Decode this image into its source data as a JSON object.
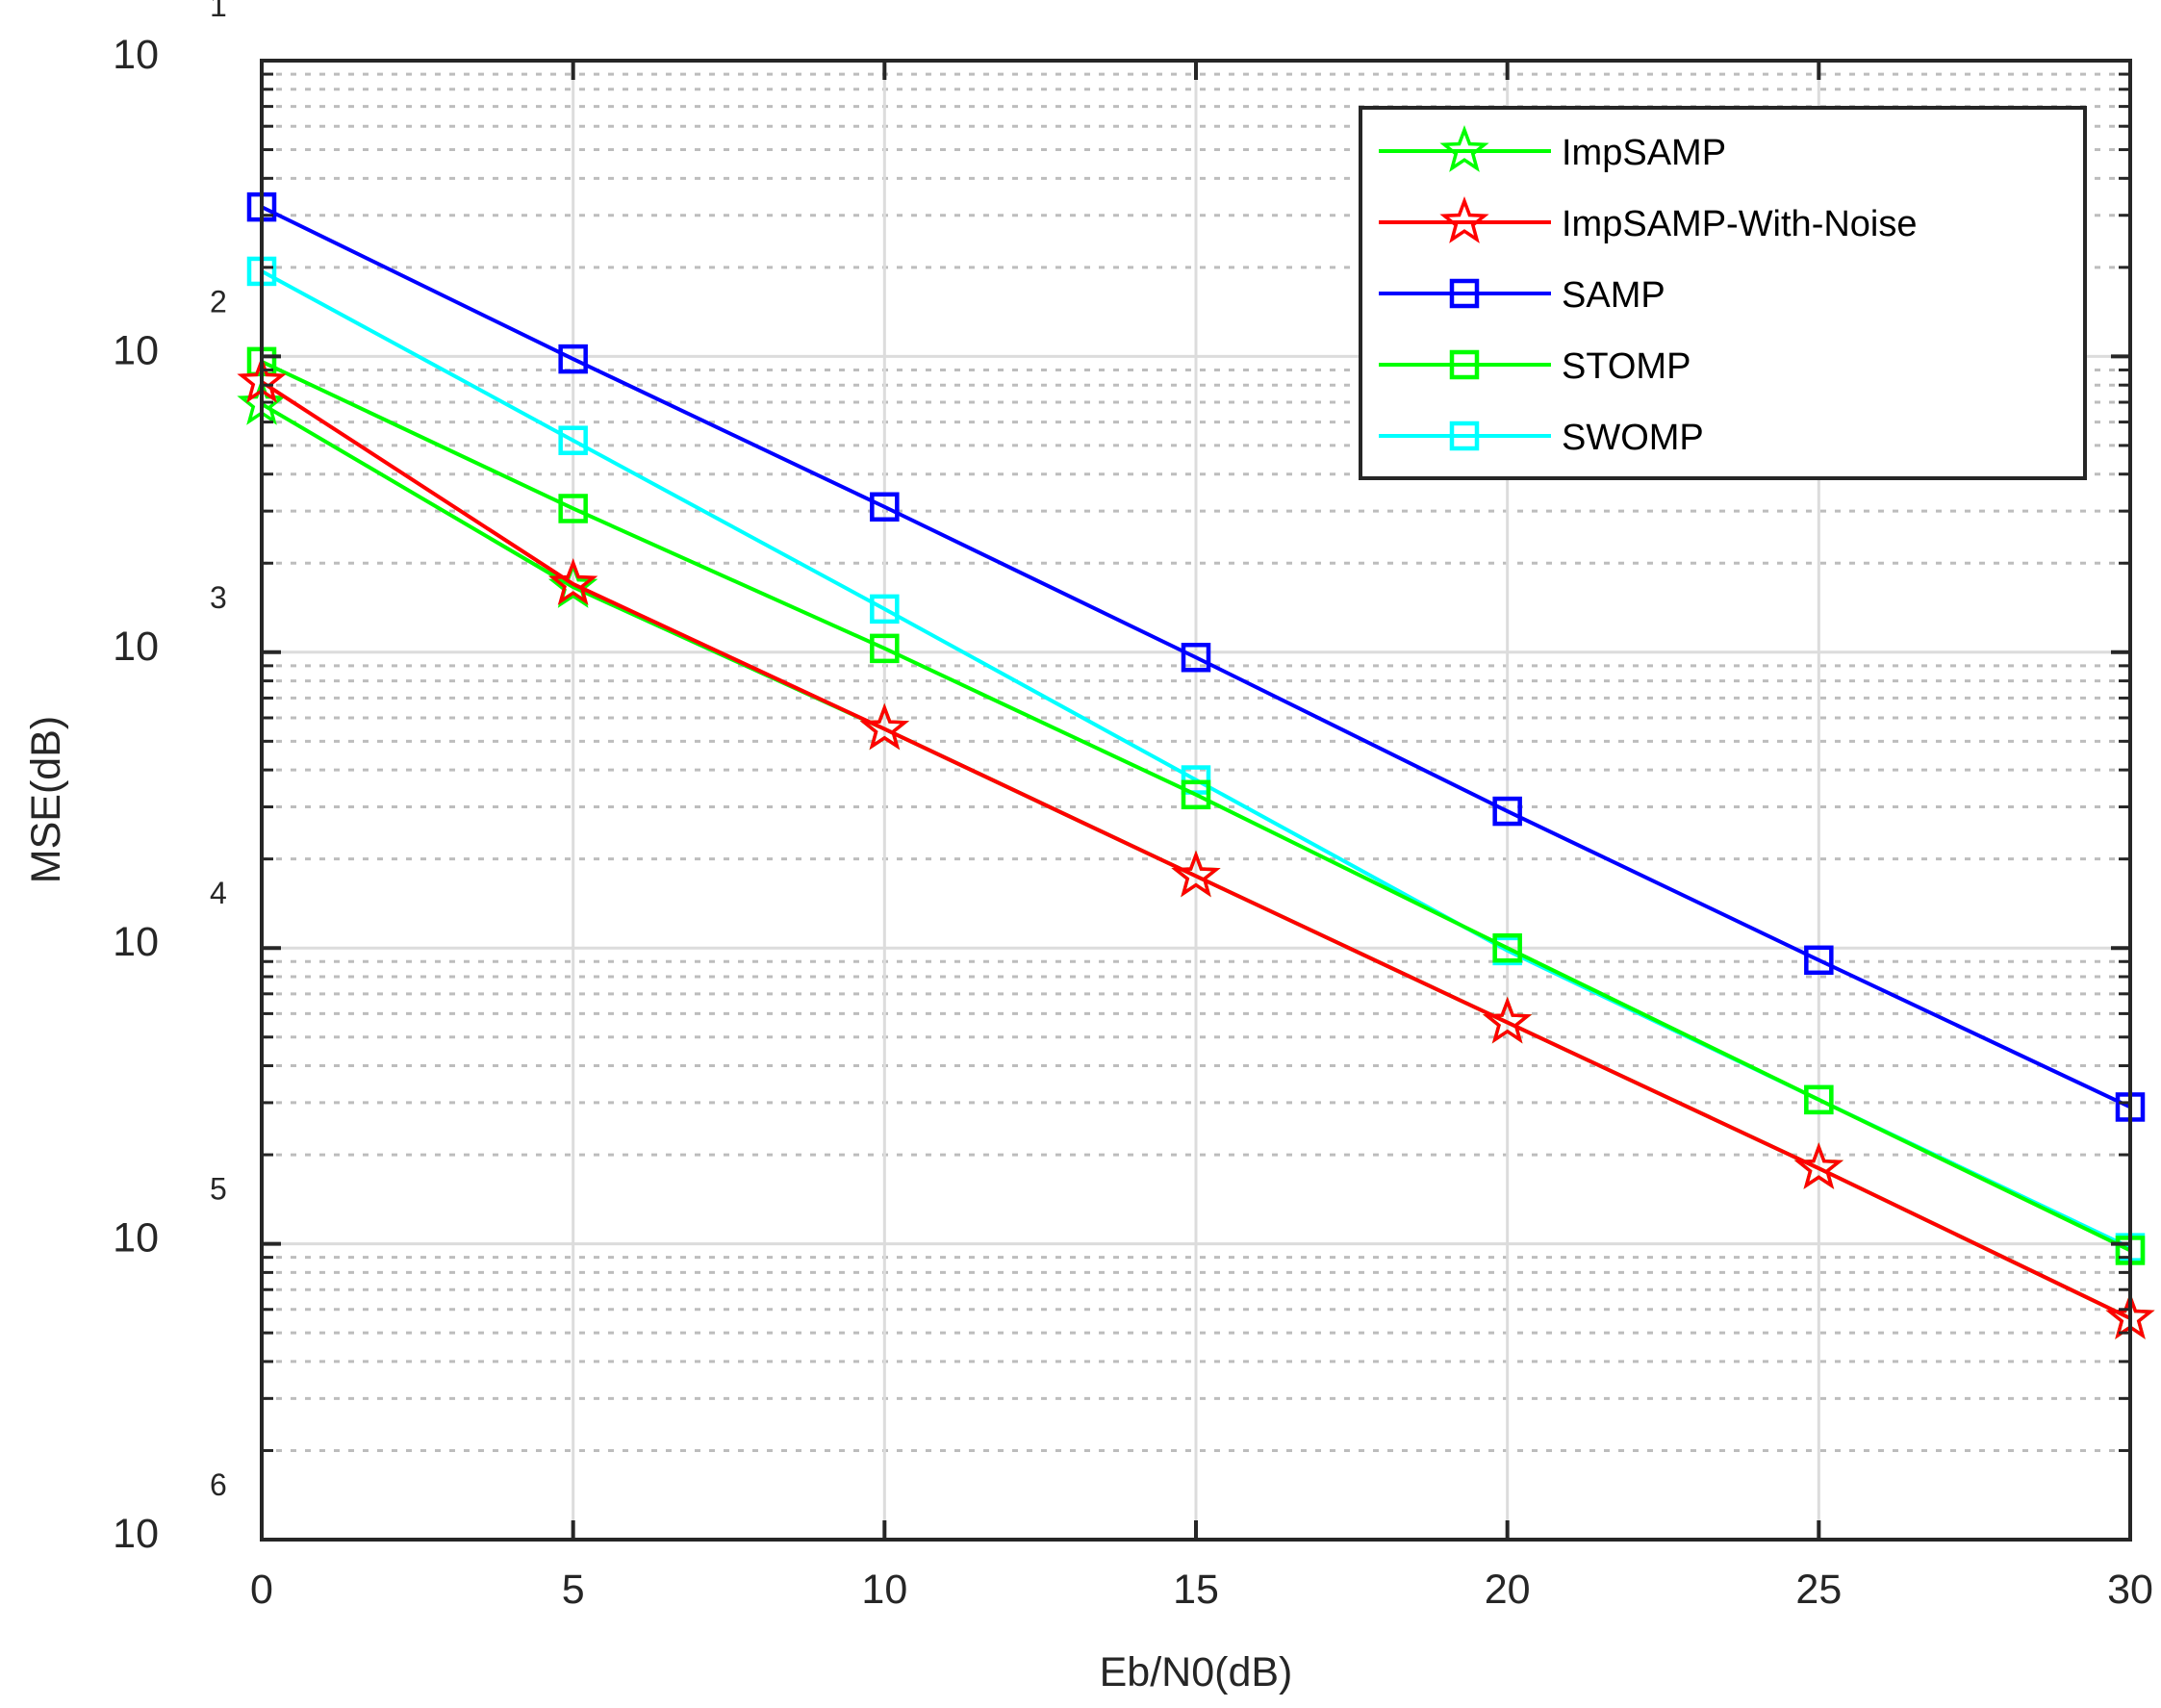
{
  "chart_data": {
    "type": "line",
    "title": "",
    "xlabel": "Eb/N0(dB)",
    "ylabel": "MSE(dB)",
    "yscale": "log",
    "xlim": [
      0,
      30
    ],
    "ylim": [
      1e-06,
      0.1
    ],
    "grid": true,
    "legend_position": "upper right",
    "x": [
      0,
      5,
      10,
      15,
      20,
      25,
      30
    ],
    "x_ticks": [
      "0",
      "5",
      "10",
      "15",
      "20",
      "25",
      "30"
    ],
    "y_ticks": [
      {
        "base": "10",
        "exp": "1",
        "value": 0.1
      },
      {
        "base": "10",
        "exp": "2",
        "value": 0.01
      },
      {
        "base": "10",
        "exp": "3",
        "value": 0.001
      },
      {
        "base": "10",
        "exp": "4",
        "value": 0.0001
      },
      {
        "base": "10",
        "exp": "5",
        "value": 1e-05
      },
      {
        "base": "10",
        "exp": "6",
        "value": 1e-06
      }
    ],
    "series": [
      {
        "name": "ImpSAMP",
        "color": "#00ff00",
        "marker": "star",
        "values": [
          0.0069,
          0.00166,
          0.00055,
          0.000175,
          5.6e-05,
          1.8e-05,
          5.6e-06
        ]
      },
      {
        "name": "ImpSAMP-With-Noise",
        "color": "#ff0000",
        "marker": "star",
        "values": [
          0.0082,
          0.0017,
          0.00055,
          0.000175,
          5.6e-05,
          1.8e-05,
          5.6e-06
        ]
      },
      {
        "name": "SAMP",
        "color": "#0000ff",
        "marker": "square",
        "values": [
          0.032,
          0.0098,
          0.0031,
          0.00096,
          0.00029,
          9.1e-05,
          2.9e-05
        ]
      },
      {
        "name": "STOMP",
        "color": "#00ff00",
        "marker": "square",
        "values": [
          0.0096,
          0.00306,
          0.00103,
          0.00033,
          0.0001,
          3.07e-05,
          9.5e-06
        ]
      },
      {
        "name": "SWOMP",
        "color": "#00ffff",
        "marker": "square",
        "values": [
          0.0194,
          0.0052,
          0.0014,
          0.00037,
          9.8e-05,
          3.07e-05,
          9.7e-06
        ]
      }
    ]
  }
}
